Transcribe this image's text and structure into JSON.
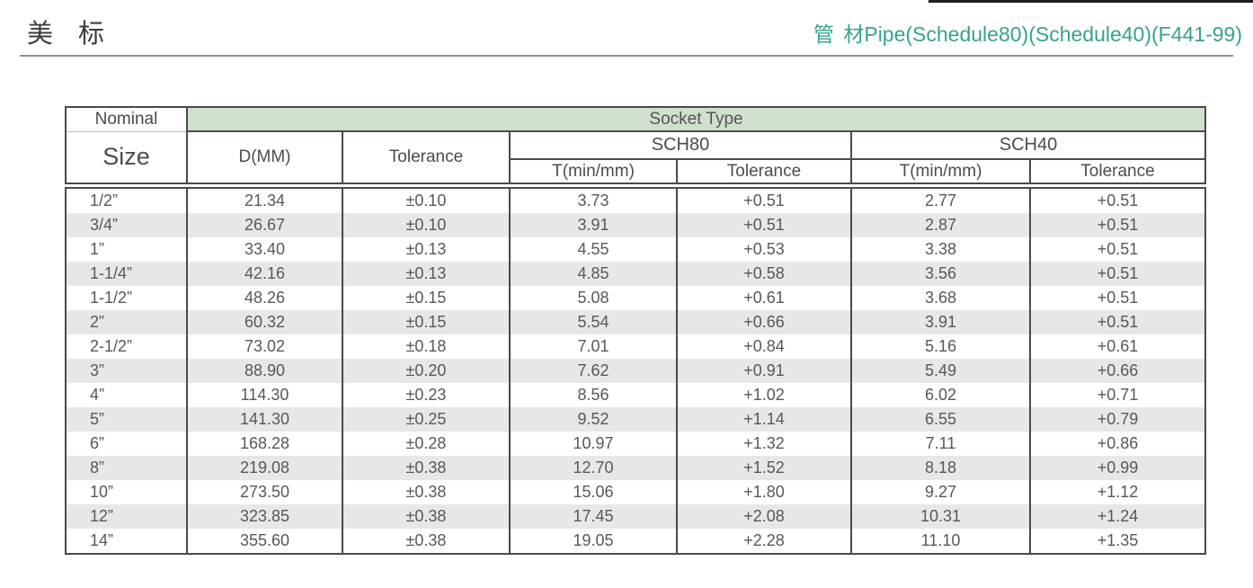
{
  "page": {
    "title": "美 标",
    "header_right": "管 材Pipe(Schedule80)(Schedule40)(F441-99)",
    "colors": {
      "accent_green_text": "#38a28a",
      "socket_band_green": "#cfe0cd",
      "row_stripe_gray": "#e7e7e7",
      "table_border": "#4a4a4a",
      "table_text": "#585858"
    }
  },
  "table": {
    "header": {
      "nominal": "Nominal",
      "size": "Size",
      "socket_type": "Socket Type",
      "d_mm": "D(MM)",
      "tolerance": "Tolerance",
      "sch80": "SCH80",
      "sch40": "SCH40",
      "t_min_mm": "T(min/mm)"
    },
    "rows": [
      [
        "1/2”",
        "21.34",
        "±0.10",
        "3.73",
        "+0.51",
        "2.77",
        "+0.51"
      ],
      [
        "3/4”",
        "26.67",
        "±0.10",
        "3.91",
        "+0.51",
        "2.87",
        "+0.51"
      ],
      [
        "1”",
        "33.40",
        "±0.13",
        "4.55",
        "+0.53",
        "3.38",
        "+0.51"
      ],
      [
        "1-1/4”",
        "42.16",
        "±0.13",
        "4.85",
        "+0.58",
        "3.56",
        "+0.51"
      ],
      [
        "1-1/2”",
        "48.26",
        "±0.15",
        "5.08",
        "+0.61",
        "3.68",
        "+0.51"
      ],
      [
        "2”",
        "60.32",
        "±0.15",
        "5.54",
        "+0.66",
        "3.91",
        "+0.51"
      ],
      [
        "2-1/2”",
        "73.02",
        "±0.18",
        "7.01",
        "+0.84",
        "5.16",
        "+0.61"
      ],
      [
        "3”",
        "88.90",
        "±0.20",
        "7.62",
        "+0.91",
        "5.49",
        "+0.66"
      ],
      [
        "4”",
        "114.30",
        "±0.23",
        "8.56",
        "+1.02",
        "6.02",
        "+0.71"
      ],
      [
        "5”",
        "141.30",
        "±0.25",
        "9.52",
        "+1.14",
        "6.55",
        "+0.79"
      ],
      [
        "6”",
        "168.28",
        "±0.28",
        "10.97",
        "+1.32",
        "7.11",
        "+0.86"
      ],
      [
        "8”",
        "219.08",
        "±0.38",
        "12.70",
        "+1.52",
        "8.18",
        "+0.99"
      ],
      [
        "10”",
        "273.50",
        "±0.38",
        "15.06",
        "+1.80",
        "9.27",
        "+1.12"
      ],
      [
        "12”",
        "323.85",
        "±0.38",
        "17.45",
        "+2.08",
        "10.31",
        "+1.24"
      ],
      [
        "14”",
        "355.60",
        "±0.38",
        "19.05",
        "+2.28",
        "11.10",
        "+1.35"
      ]
    ]
  }
}
